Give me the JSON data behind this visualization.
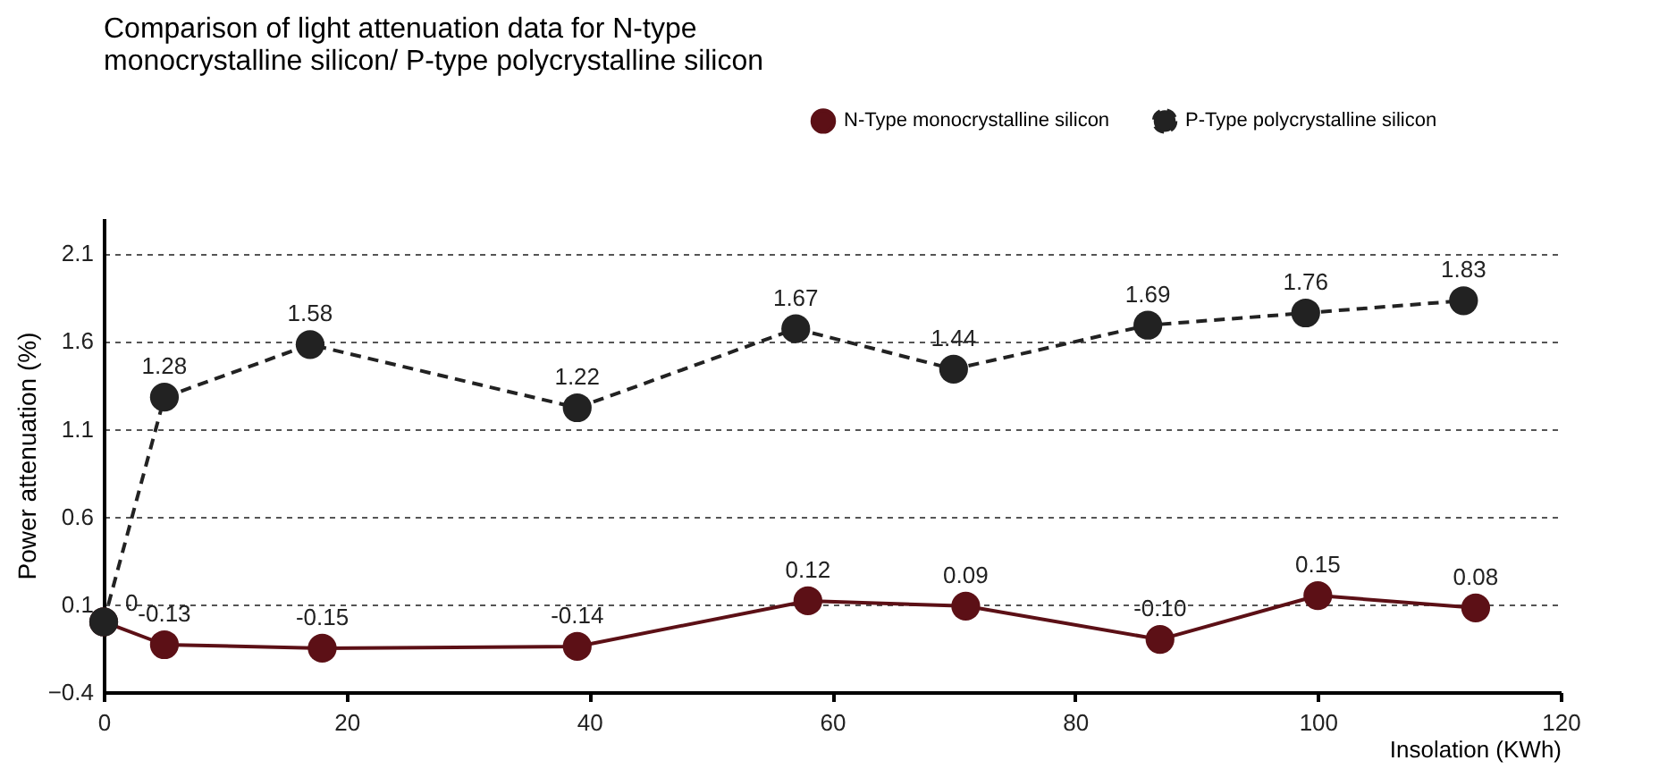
{
  "chart_data": {
    "type": "line",
    "title": "Comparison of light attenuation data for N-type\nmonocrystalline silicon/ P-type polycrystalline silicon",
    "xlabel": "Insolation (KWh)",
    "ylabel": "Power attenuation (%)",
    "xlim": [
      0,
      120
    ],
    "xticks": [
      0,
      20,
      40,
      60,
      80,
      100,
      120
    ],
    "ylim": [
      -0.4,
      2.3
    ],
    "yticks": [
      -0.4,
      0.1,
      0.6,
      1.1,
      1.6,
      2.1
    ],
    "grid": "y",
    "legend": "top right",
    "marker": "circle",
    "series": [
      {
        "name": "N-Type monocrystalline silicon",
        "color": "#5c1016",
        "line_style": "solid",
        "x": [
          0,
          5,
          18,
          39,
          58,
          71,
          87,
          100,
          113
        ],
        "values": [
          0,
          -0.13,
          -0.15,
          -0.14,
          0.12,
          0.09,
          -0.1,
          0.15,
          0.08
        ],
        "value_labels": [
          "0",
          "-0.13",
          "-0.15",
          "-0.14",
          "0.12",
          "0.09",
          "-0.10",
          "0.15",
          "0.08"
        ]
      },
      {
        "name": "P-Type polycrystalline silicon",
        "color": "#222222",
        "line_style": "dashed",
        "x": [
          0,
          5,
          17,
          39,
          57,
          70,
          86,
          99,
          112
        ],
        "values": [
          0,
          1.28,
          1.58,
          1.22,
          1.67,
          1.44,
          1.69,
          1.76,
          1.83
        ],
        "value_labels": [
          null,
          "1.28",
          "1.58",
          "1.22",
          "1.67",
          "1.44",
          "1.69",
          "1.76",
          "1.83"
        ]
      }
    ]
  }
}
